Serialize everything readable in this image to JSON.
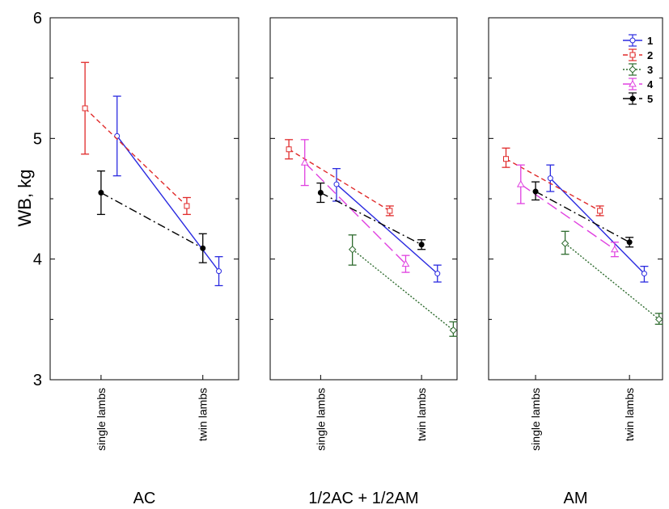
{
  "chart_data": {
    "type": "line",
    "ylabel": "WB, kg",
    "ylim": [
      3,
      6
    ],
    "yticks": [
      "3",
      "4",
      "5",
      "6"
    ],
    "categories": [
      "single lambs",
      "twin lambs"
    ],
    "legend_position": "top-right",
    "series_styles": [
      {
        "name": "1",
        "color": "#2a2ae0",
        "dash": "",
        "marker": "circle-open"
      },
      {
        "name": "2",
        "color": "#e02a2a",
        "dash": "6,4",
        "marker": "square-open"
      },
      {
        "name": "3",
        "color": "#2e6b2e",
        "dash": "2,2",
        "marker": "diamond-open"
      },
      {
        "name": "4",
        "color": "#e040e0",
        "dash": "14,6",
        "marker": "triangle-open"
      },
      {
        "name": "5",
        "color": "#000000",
        "dash": "10,4,2,4",
        "marker": "circle-filled"
      }
    ],
    "panels": [
      {
        "label": "AC",
        "series": [
          {
            "name": "1",
            "values": [
              5.02,
              3.9
            ],
            "err_low": [
              4.69,
              3.78
            ],
            "err_high": [
              5.35,
              4.02
            ]
          },
          {
            "name": "2",
            "values": [
              5.25,
              4.44
            ],
            "err_low": [
              4.87,
              4.37
            ],
            "err_high": [
              5.63,
              4.51
            ]
          },
          {
            "name": "5",
            "values": [
              4.55,
              4.09
            ],
            "err_low": [
              4.37,
              3.97
            ],
            "err_high": [
              4.73,
              4.21
            ]
          }
        ]
      },
      {
        "label": "1/2AC  + 1/2AM",
        "series": [
          {
            "name": "1",
            "values": [
              4.62,
              3.88
            ],
            "err_low": [
              4.48,
              3.81
            ],
            "err_high": [
              4.75,
              3.95
            ]
          },
          {
            "name": "2",
            "values": [
              4.91,
              4.4
            ],
            "err_low": [
              4.83,
              4.36
            ],
            "err_high": [
              4.99,
              4.44
            ]
          },
          {
            "name": "3",
            "values": [
              4.08,
              3.41
            ],
            "err_low": [
              3.95,
              3.36
            ],
            "err_high": [
              4.2,
              3.48
            ]
          },
          {
            "name": "4",
            "values": [
              4.8,
              3.96
            ],
            "err_low": [
              4.61,
              3.89
            ],
            "err_high": [
              4.99,
              4.03
            ]
          },
          {
            "name": "5",
            "values": [
              4.55,
              4.12
            ],
            "err_low": [
              4.47,
              4.08
            ],
            "err_high": [
              4.63,
              4.16
            ]
          }
        ]
      },
      {
        "label": "AM",
        "series": [
          {
            "name": "1",
            "values": [
              4.67,
              3.88
            ],
            "err_low": [
              4.56,
              3.81
            ],
            "err_high": [
              4.78,
              3.94
            ]
          },
          {
            "name": "2",
            "values": [
              4.83,
              4.4
            ],
            "err_low": [
              4.76,
              4.36
            ],
            "err_high": [
              4.92,
              4.44
            ]
          },
          {
            "name": "3",
            "values": [
              4.13,
              3.5
            ],
            "err_low": [
              4.04,
              3.46
            ],
            "err_high": [
              4.23,
              3.55
            ]
          },
          {
            "name": "4",
            "values": [
              4.62,
              4.08
            ],
            "err_low": [
              4.46,
              4.02
            ],
            "err_high": [
              4.78,
              4.14
            ]
          },
          {
            "name": "5",
            "values": [
              4.56,
              4.14
            ],
            "err_low": [
              4.49,
              4.1
            ],
            "err_high": [
              4.64,
              4.18
            ]
          }
        ]
      }
    ]
  }
}
